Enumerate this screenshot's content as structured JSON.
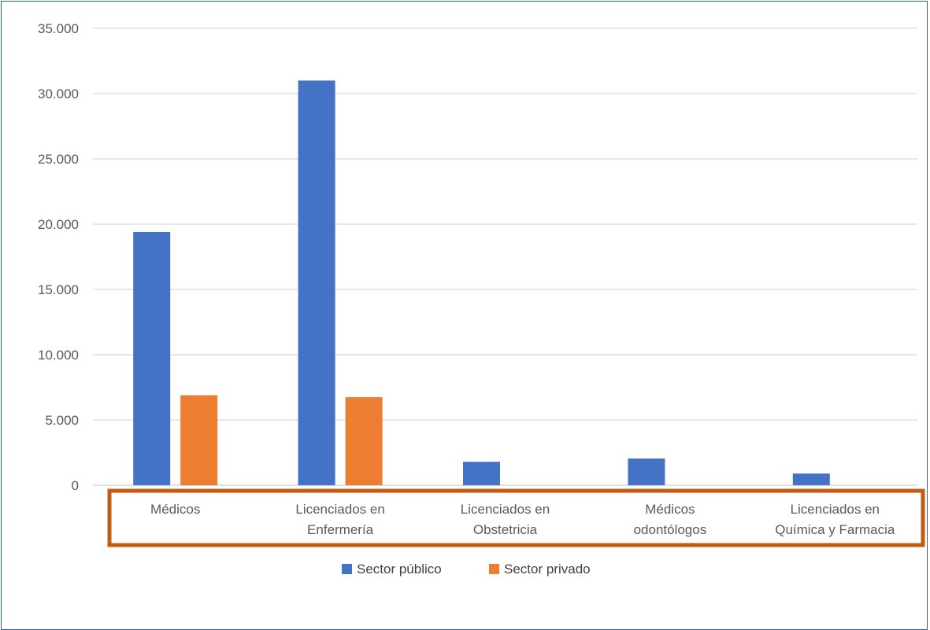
{
  "chart_data": {
    "type": "bar",
    "categories": [
      [
        "Médicos"
      ],
      [
        "Licenciados en",
        "Enfermería"
      ],
      [
        "Licenciados en",
        "Obstetricia"
      ],
      [
        "Médicos",
        "odontólogos"
      ],
      [
        "Licenciados en",
        "Química y Farmacia"
      ]
    ],
    "series": [
      {
        "name": "Sector público",
        "color": "#4472c4",
        "values": [
          19400,
          31000,
          1800,
          2050,
          900
        ]
      },
      {
        "name": "Sector privado",
        "color": "#ed7d31",
        "values": [
          6900,
          6750,
          0,
          0,
          0
        ]
      }
    ],
    "ylim": [
      0,
      35000
    ],
    "yticks": [
      0,
      5000,
      10000,
      15000,
      20000,
      25000,
      30000,
      35000
    ],
    "ytick_labels": [
      "0",
      "5.000",
      "10.000",
      "15.000",
      "20.000",
      "25.000",
      "30.000",
      "35.000"
    ],
    "grid": true,
    "legend_position": "bottom",
    "highlight_color": "#c55a11",
    "gridline_color": "#d9d9d9"
  }
}
